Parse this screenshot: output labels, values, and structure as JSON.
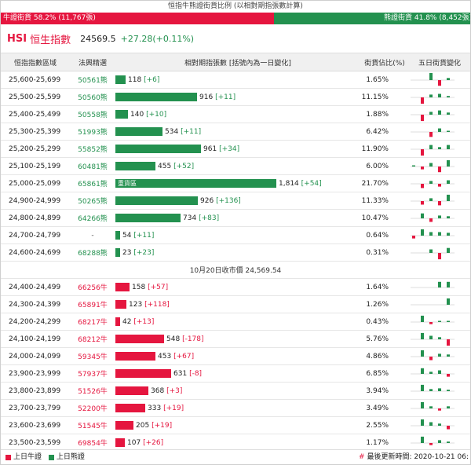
{
  "title": "恒指牛熊證街貨比例 (以相對期指張數計算)",
  "ratio": {
    "bull_label": "牛證街貨 58.2% (11,767張)",
    "bull_pct": 58.2,
    "bear_label": "熊證街貨 41.8% (8,452張)"
  },
  "header": {
    "code": "HSI",
    "name": "恒生指數",
    "value": "24569.5",
    "change": "+27.28(+0.11%)"
  },
  "columns": [
    "恒指指數區域",
    "法興精選",
    "相對期指張數 [括號內為一日變化]",
    "街貨佔比(%)",
    "五日街貨變化"
  ],
  "colors": {
    "bull": "#e5163f",
    "bear": "#23914f"
  },
  "max_count": 1814,
  "bear_rows": [
    {
      "range": "25,600-25,699",
      "warrant": "50561熊",
      "count": 118,
      "count_label": "118",
      "change": "[+6]",
      "pct": "1.65%",
      "spark": [
        0,
        0,
        1.0,
        -0.8,
        0.3
      ]
    },
    {
      "range": "25,500-25,599",
      "warrant": "50560熊",
      "count": 916,
      "count_label": "916",
      "change": "[+11]",
      "pct": "11.15%",
      "spark": [
        0,
        -0.9,
        0.4,
        0.5,
        0.2
      ]
    },
    {
      "range": "25,400-25,499",
      "warrant": "50558熊",
      "count": 140,
      "count_label": "140",
      "change": "[+10]",
      "pct": "1.88%",
      "spark": [
        0,
        -0.9,
        0.4,
        0.6,
        0.3
      ]
    },
    {
      "range": "25,300-25,399",
      "warrant": "51993熊",
      "count": 534,
      "count_label": "534",
      "change": "[+11]",
      "pct": "6.42%",
      "spark": [
        0,
        0,
        -0.7,
        0.5,
        0.1
      ]
    },
    {
      "range": "25,200-25,299",
      "warrant": "55852熊",
      "count": 961,
      "count_label": "961",
      "change": "[+34]",
      "pct": "11.90%",
      "spark": [
        0,
        -0.9,
        0.6,
        0.3,
        0.6
      ]
    },
    {
      "range": "25,100-25,199",
      "warrant": "60481熊",
      "count": 455,
      "count_label": "455",
      "change": "[+52]",
      "pct": "6.00%",
      "spark": [
        0.05,
        -0.4,
        0.5,
        -0.8,
        0.9
      ]
    },
    {
      "range": "25,000-25,099",
      "warrant": "65861熊",
      "count": 1814,
      "count_label": "1,814",
      "change": "[+54]",
      "pct": "21.70%",
      "inner": "重貨區",
      "spark": [
        0,
        -0.6,
        0.4,
        -0.4,
        0.5
      ]
    },
    {
      "range": "24,900-24,999",
      "warrant": "50265熊",
      "count": 926,
      "count_label": "926",
      "change": "[+136]",
      "pct": "11.33%",
      "spark": [
        0,
        -0.5,
        0.4,
        -0.6,
        0.9
      ]
    },
    {
      "range": "24,800-24,899",
      "warrant": "64266熊",
      "count": 734,
      "count_label": "734",
      "change": "[+83]",
      "pct": "10.47%",
      "spark": [
        0,
        0.7,
        -0.5,
        0.4,
        0.3
      ]
    },
    {
      "range": "24,700-24,799",
      "warrant": "-",
      "count": 54,
      "count_label": "54",
      "change": "[+11]",
      "pct": "0.64%",
      "spark": [
        -0.4,
        0.9,
        0.5,
        0.5,
        0.4
      ]
    },
    {
      "range": "24,600-24,699",
      "warrant": "68288熊",
      "count": 23,
      "count_label": "23",
      "change": "[+23]",
      "pct": "0.31%",
      "spark": [
        0,
        0,
        0.5,
        -0.9,
        0.7
      ]
    }
  ],
  "separator": "10月20日收市價 24,569.54",
  "bull_rows": [
    {
      "range": "24,400-24,499",
      "warrant": "66256牛",
      "count": 158,
      "count_label": "158",
      "change": "[+57]",
      "pct": "1.64%",
      "spark": [
        0,
        0,
        0,
        0.8,
        0.8
      ]
    },
    {
      "range": "24,300-24,399",
      "warrant": "65891牛",
      "count": 123,
      "count_label": "123",
      "change": "[+118]",
      "pct": "1.26%",
      "spark": [
        0,
        0,
        0,
        0,
        0.9
      ]
    },
    {
      "range": "24,200-24,299",
      "warrant": "68217牛",
      "count": 42,
      "count_label": "42",
      "change": "[+13]",
      "pct": "0.43%",
      "spark": [
        0,
        0.9,
        -0.3,
        0.1,
        0.1
      ]
    },
    {
      "range": "24,100-24,199",
      "warrant": "68212牛",
      "count": 548,
      "count_label": "548",
      "change": "[-178]",
      "pct": "5.76%",
      "spark": [
        0,
        0.9,
        0.5,
        0.3,
        -0.9
      ]
    },
    {
      "range": "24,000-24,099",
      "warrant": "59345牛",
      "count": 453,
      "count_label": "453",
      "change": "[+67]",
      "pct": "4.86%",
      "spark": [
        0,
        0.9,
        -0.5,
        0.4,
        0.3
      ]
    },
    {
      "range": "23,900-23,999",
      "warrant": "57937牛",
      "count": 631,
      "count_label": "631",
      "change": "[-8]",
      "pct": "6.85%",
      "spark": [
        0,
        0.8,
        0.3,
        0.5,
        -0.4
      ]
    },
    {
      "range": "23,800-23,899",
      "warrant": "51526牛",
      "count": 368,
      "count_label": "368",
      "change": "[+3]",
      "pct": "3.94%",
      "spark": [
        0,
        0.9,
        0.3,
        0.4,
        0.2
      ]
    },
    {
      "range": "23,700-23,799",
      "warrant": "52200牛",
      "count": 333,
      "count_label": "333",
      "change": "[+19]",
      "pct": "3.49%",
      "spark": [
        0,
        0.9,
        0.3,
        -0.3,
        0.3
      ]
    },
    {
      "range": "23,600-23,699",
      "warrant": "51545牛",
      "count": 205,
      "count_label": "205",
      "change": "[+19]",
      "pct": "2.55%",
      "spark": [
        0,
        0.9,
        0.5,
        0.3,
        -0.5
      ]
    },
    {
      "range": "23,500-23,599",
      "warrant": "69854牛",
      "count": 107,
      "count_label": "107",
      "change": "[+26]",
      "pct": "1.17%",
      "spark": [
        0,
        0.9,
        -0.3,
        0.4,
        0.2
      ]
    }
  ],
  "legend": {
    "bull": "上日牛證",
    "bear": "上日熊證",
    "updated": "最後更新時間: 2020-10-21 06:"
  }
}
